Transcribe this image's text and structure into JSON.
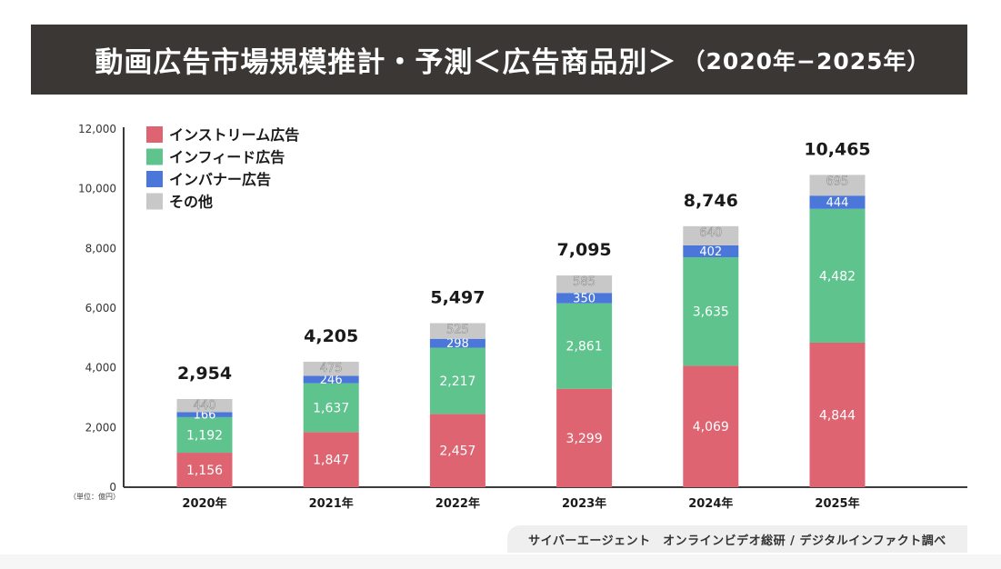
{
  "header": {
    "title": "動画広告市場規模推計・予測＜広告商品別＞",
    "subtitle": "（2020年−2025年）"
  },
  "source": "サイバーエージェント　オンラインビデオ総研 / デジタルインファクト調べ",
  "chart_data": {
    "type": "bar",
    "stacked": true,
    "title": "動画広告市場規模推計・予測＜広告商品別＞（2020年−2025年）",
    "xlabel": "",
    "ylabel": "",
    "unit_label": "（単位：億円）",
    "ylim": [
      0,
      12000
    ],
    "yticks": [
      0,
      2000,
      4000,
      6000,
      8000,
      10000,
      12000
    ],
    "ytick_labels": [
      "0",
      "2,000",
      "4,000",
      "6,000",
      "8,000",
      "10,000",
      "12,000"
    ],
    "grid": false,
    "legend_position": "top-left",
    "categories": [
      "2020年",
      "2021年",
      "2022年",
      "2023年",
      "2024年",
      "2025年"
    ],
    "series": [
      {
        "name": "インストリーム広告",
        "color": "#df6471",
        "values": [
          1156,
          1847,
          2457,
          3299,
          4069,
          4844
        ],
        "labels": [
          "1,156",
          "1,847",
          "2,457",
          "3,299",
          "4,069",
          "4,844"
        ]
      },
      {
        "name": "インフィード広告",
        "color": "#5ec38d",
        "values": [
          1192,
          1637,
          2217,
          2861,
          3635,
          4482
        ],
        "labels": [
          "1,192",
          "1,637",
          "2,217",
          "2,861",
          "3,635",
          "4,482"
        ]
      },
      {
        "name": "インバナー広告",
        "color": "#4a77d9",
        "values": [
          166,
          246,
          298,
          350,
          402,
          444
        ],
        "labels": [
          "166",
          "246",
          "298",
          "350",
          "402",
          "444"
        ]
      },
      {
        "name": "その他",
        "color": "#c8c8c8",
        "values": [
          440,
          475,
          525,
          585,
          640,
          695
        ],
        "labels": [
          "440",
          "475",
          "525",
          "585",
          "640",
          "695"
        ]
      }
    ],
    "totals": [
      2954,
      4205,
      5497,
      7095,
      8746,
      10465
    ],
    "total_labels": [
      "2,954",
      "4,205",
      "5,497",
      "7,095",
      "8,746",
      "10,465"
    ]
  }
}
